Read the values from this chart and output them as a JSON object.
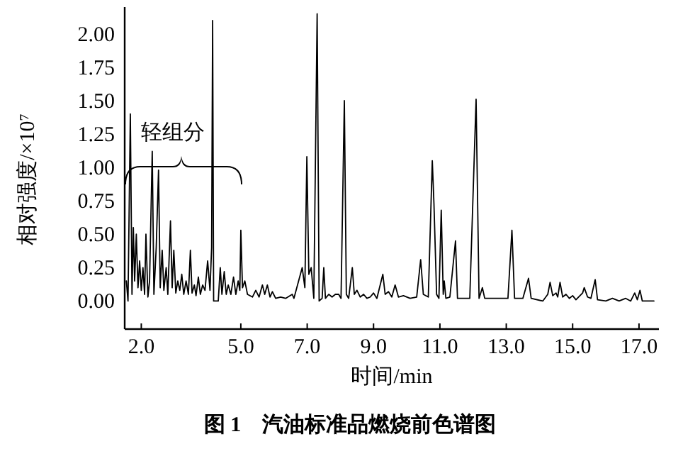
{
  "chart_data": {
    "type": "line",
    "title": "图 1　汽油标准品燃烧前色谱图",
    "xlabel": "时间/min",
    "ylabel": "相对强度/×10⁷",
    "annotations": [
      "轻组分"
    ],
    "xlim": [
      1.5,
      17.6
    ],
    "ylim": [
      -0.21,
      2.2
    ],
    "xticks": [
      {
        "value": 2,
        "label": "2.0"
      },
      {
        "value": 5,
        "label": "5.0"
      },
      {
        "value": 7,
        "label": "7.0"
      },
      {
        "value": 9,
        "label": "9.0"
      },
      {
        "value": 11,
        "label": "11.0"
      },
      {
        "value": 13,
        "label": "13.0"
      },
      {
        "value": 15,
        "label": "15.0"
      },
      {
        "value": 17,
        "label": "17.0"
      }
    ],
    "yticks": [
      {
        "value": 0,
        "label": "0.00"
      },
      {
        "value": 0.25,
        "label": "0.25"
      },
      {
        "value": 0.5,
        "label": "0.50"
      },
      {
        "value": 0.75,
        "label": "0.75"
      },
      {
        "value": 1,
        "label": "1.00"
      },
      {
        "value": 1.25,
        "label": "1.25"
      },
      {
        "value": 1.5,
        "label": "1.50"
      },
      {
        "value": 1.75,
        "label": "1.75"
      },
      {
        "value": 2,
        "label": "2.00"
      }
    ],
    "grid": false,
    "marker": "none",
    "line_style": "solid",
    "series": [
      {
        "color": "#000000",
        "x": [
          1.55,
          1.6,
          1.67,
          1.72,
          1.76,
          1.8,
          1.85,
          1.9,
          1.95,
          2.0,
          2.05,
          2.1,
          2.14,
          2.2,
          2.25,
          2.33,
          2.38,
          2.45,
          2.52,
          2.57,
          2.63,
          2.68,
          2.75,
          2.8,
          2.88,
          2.93,
          2.98,
          3.04,
          3.1,
          3.16,
          3.22,
          3.28,
          3.35,
          3.42,
          3.48,
          3.53,
          3.6,
          3.65,
          3.72,
          3.78,
          3.85,
          3.92,
          4.0,
          4.07,
          4.12,
          4.15,
          4.18,
          4.32,
          4.38,
          4.43,
          4.5,
          4.56,
          4.62,
          4.7,
          4.78,
          4.85,
          4.92,
          4.97,
          5.0,
          5.05,
          5.12,
          5.2,
          5.35,
          5.45,
          5.55,
          5.65,
          5.72,
          5.8,
          5.88,
          5.95,
          6.05,
          6.2,
          6.35,
          6.55,
          6.6,
          6.85,
          6.93,
          6.99,
          7.05,
          7.12,
          7.2,
          7.3,
          7.36,
          7.45,
          7.5,
          7.55,
          7.65,
          7.75,
          7.85,
          7.95,
          8.02,
          8.12,
          8.18,
          8.25,
          8.36,
          8.42,
          8.5,
          8.6,
          8.7,
          8.8,
          8.9,
          9.0,
          9.1,
          9.28,
          9.35,
          9.45,
          9.55,
          9.65,
          9.75,
          9.9,
          10.1,
          10.3,
          10.42,
          10.5,
          10.65,
          10.77,
          10.82,
          10.9,
          10.97,
          11.04,
          11.1,
          11.13,
          11.18,
          11.3,
          11.47,
          11.53,
          11.7,
          11.9,
          12.09,
          12.18,
          12.28,
          12.35,
          12.6,
          12.9,
          13.05,
          13.17,
          13.25,
          13.5,
          13.67,
          13.75,
          14.1,
          14.25,
          14.32,
          14.4,
          14.5,
          14.55,
          14.62,
          14.7,
          14.8,
          14.9,
          15.0,
          15.1,
          15.3,
          15.35,
          15.45,
          15.55,
          15.68,
          15.75,
          16.0,
          16.2,
          16.4,
          16.6,
          16.75,
          16.87,
          16.95,
          17.03,
          17.1,
          17.45
        ],
        "values": [
          0.15,
          0.0,
          1.4,
          0.05,
          0.55,
          0.15,
          0.5,
          0.1,
          0.3,
          0.08,
          0.25,
          0.05,
          0.5,
          0.03,
          0.15,
          1.12,
          0.05,
          0.4,
          0.98,
          0.1,
          0.38,
          0.08,
          0.25,
          0.05,
          0.6,
          0.1,
          0.38,
          0.06,
          0.15,
          0.08,
          0.2,
          0.05,
          0.15,
          0.05,
          0.38,
          0.06,
          0.12,
          0.04,
          0.18,
          0.05,
          0.12,
          0.08,
          0.3,
          0.08,
          0.4,
          2.1,
          0.0,
          0.0,
          0.25,
          0.05,
          0.22,
          0.05,
          0.12,
          0.05,
          0.18,
          0.05,
          0.15,
          0.08,
          0.53,
          0.1,
          0.15,
          0.05,
          0.03,
          0.08,
          0.03,
          0.12,
          0.05,
          0.12,
          0.03,
          0.07,
          0.02,
          0.03,
          0.02,
          0.05,
          0.02,
          0.25,
          0.1,
          1.08,
          0.2,
          0.25,
          0.02,
          2.15,
          0.0,
          0.02,
          0.25,
          0.02,
          0.05,
          0.03,
          0.05,
          0.05,
          0.02,
          1.5,
          0.05,
          0.02,
          0.25,
          0.05,
          0.08,
          0.03,
          0.05,
          0.02,
          0.03,
          0.06,
          0.02,
          0.2,
          0.05,
          0.07,
          0.03,
          0.12,
          0.03,
          0.04,
          0.02,
          0.03,
          0.31,
          0.05,
          0.03,
          1.05,
          0.73,
          0.05,
          0.02,
          0.68,
          0.05,
          0.15,
          0.02,
          0.03,
          0.45,
          0.02,
          0.02,
          0.02,
          1.51,
          0.02,
          0.1,
          0.02,
          0.02,
          0.02,
          0.02,
          0.53,
          0.02,
          0.02,
          0.17,
          0.02,
          0.0,
          0.05,
          0.14,
          0.04,
          0.06,
          0.03,
          0.14,
          0.03,
          0.05,
          0.02,
          0.04,
          0.01,
          0.06,
          0.1,
          0.03,
          0.02,
          0.16,
          0.01,
          0.0,
          0.02,
          0.0,
          0.02,
          0.0,
          0.06,
          0.01,
          0.08,
          0.0,
          0.0
        ]
      }
    ]
  }
}
